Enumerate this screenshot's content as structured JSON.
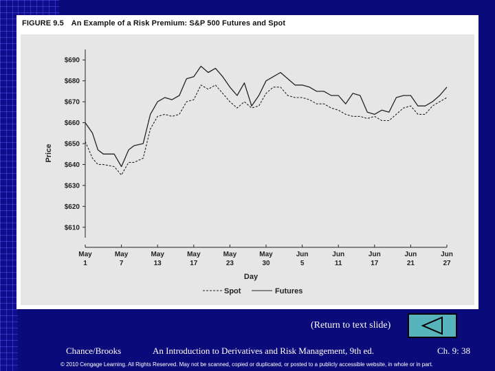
{
  "figure": {
    "number": "FIGURE 9.5",
    "title": "An Example of a Risk Premium: S&P 500 Futures and Spot"
  },
  "chart_data": {
    "type": "line",
    "title": "An Example of a Risk Premium: S&P 500 Futures and Spot",
    "xlabel": "Day",
    "ylabel": "Price",
    "ylim": [
      605,
      695
    ],
    "y_ticks": [
      "$610",
      "$620",
      "$630",
      "$640",
      "$650",
      "$660",
      "$670",
      "$680",
      "$690"
    ],
    "y_tick_values": [
      610,
      620,
      630,
      640,
      650,
      660,
      670,
      680,
      690
    ],
    "x_ticks": [
      {
        "month": "May",
        "day": "1"
      },
      {
        "month": "May",
        "day": "7"
      },
      {
        "month": "May",
        "day": "13"
      },
      {
        "month": "May",
        "day": "17"
      },
      {
        "month": "May",
        "day": "23"
      },
      {
        "month": "May",
        "day": "30"
      },
      {
        "month": "Jun",
        "day": "5"
      },
      {
        "month": "Jun",
        "day": "11"
      },
      {
        "month": "Jun",
        "day": "17"
      },
      {
        "month": "Jun",
        "day": "21"
      },
      {
        "month": "Jun",
        "day": "27"
      }
    ],
    "x_range": [
      0,
      10
    ],
    "grid": false,
    "legend_position": "bottom",
    "series": [
      {
        "name": "Futures",
        "style": "solid",
        "x": [
          0,
          0.2,
          0.35,
          0.5,
          0.8,
          1.0,
          1.2,
          1.35,
          1.6,
          1.8,
          2.0,
          2.2,
          2.4,
          2.6,
          2.8,
          3.0,
          3.2,
          3.4,
          3.6,
          3.8,
          4.0,
          4.2,
          4.4,
          4.6,
          4.8,
          5.0,
          5.2,
          5.4,
          5.6,
          5.8,
          6.0,
          6.2,
          6.4,
          6.6,
          6.8,
          7.0,
          7.2,
          7.4,
          7.6,
          7.8,
          8.0,
          8.2,
          8.4,
          8.6,
          8.8,
          9.0,
          9.2,
          9.4,
          9.6,
          9.8,
          10.0
        ],
        "values": [
          660,
          655,
          647,
          645,
          645,
          639,
          647,
          649,
          650,
          664,
          670,
          672,
          671,
          673,
          681,
          682,
          687,
          684,
          686,
          682,
          677,
          673,
          679,
          668,
          673,
          680,
          682,
          684,
          681,
          678,
          678,
          677,
          675,
          675,
          673,
          673,
          669,
          674,
          673,
          665,
          664,
          666,
          665,
          672,
          673,
          673,
          668,
          668,
          670,
          673,
          677
        ]
      },
      {
        "name": "Spot",
        "style": "dashed",
        "x": [
          0,
          0.2,
          0.35,
          0.5,
          0.8,
          1.0,
          1.2,
          1.35,
          1.6,
          1.8,
          2.0,
          2.2,
          2.4,
          2.6,
          2.8,
          3.0,
          3.2,
          3.4,
          3.6,
          3.8,
          4.0,
          4.2,
          4.4,
          4.6,
          4.8,
          5.0,
          5.2,
          5.4,
          5.6,
          5.8,
          6.0,
          6.2,
          6.4,
          6.6,
          6.8,
          7.0,
          7.2,
          7.4,
          7.6,
          7.8,
          8.0,
          8.2,
          8.4,
          8.6,
          8.8,
          9.0,
          9.2,
          9.4,
          9.6,
          9.8,
          10.0
        ],
        "values": [
          651,
          643,
          640,
          640,
          639,
          635,
          641,
          641,
          643,
          657,
          663,
          664,
          663,
          664,
          670,
          671,
          678,
          676,
          678,
          674,
          670,
          667,
          670,
          667,
          668,
          674,
          677,
          677,
          673,
          672,
          672,
          671,
          669,
          669,
          667,
          666,
          664,
          663,
          663,
          662,
          663,
          661,
          661,
          664,
          667,
          668,
          664,
          664,
          668,
          670,
          672
        ]
      }
    ],
    "legend": [
      {
        "name": "Spot",
        "style": "dashed"
      },
      {
        "name": "Futures",
        "style": "solid"
      }
    ]
  },
  "nav": {
    "return_label": "(Return to text slide)"
  },
  "footer": {
    "authors": "Chance/Brooks",
    "book": "An Introduction to Derivatives and Risk Management, 9th ed.",
    "chapter": "Ch. 9:  38",
    "copyright": "© 2010 Cengage Learning. All Rights Reserved. May not be scanned, copied or duplicated, or posted to a publicly accessible website, in whole or in part."
  },
  "colors": {
    "slide_background": "#0a0a7a",
    "chart_background": "#e6e6e6",
    "line_color": "#222222",
    "button_fill": "#58b4bc"
  }
}
